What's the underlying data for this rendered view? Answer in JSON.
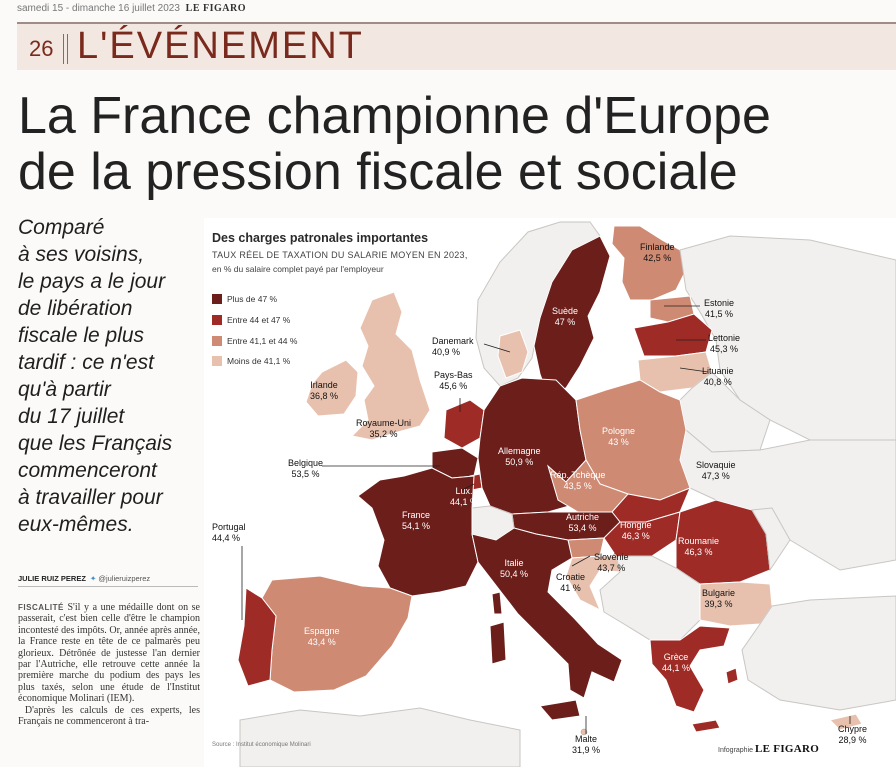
{
  "page": {
    "dateline": "samedi 15 - dimanche 16 juillet 2023",
    "brand": "LE FIGARO",
    "page_number": "26",
    "section": "L'ÉVÉNEMENT"
  },
  "article": {
    "headline_line1": "La France championne d'Europe",
    "headline_line2": "de la pression fiscale et sociale",
    "standfirst": [
      "Comparé",
      "à ses voisins,",
      "le pays a le jour",
      "de libération",
      "fiscale le plus",
      "tardif : ce n'est",
      "qu'à partir",
      "du 17 juillet",
      "que les Français",
      "commenceront",
      "à travailler pour",
      "eux-mêmes."
    ],
    "author": "JULIE RUIZ PEREZ",
    "author_twitter": "@julieruizperez",
    "body_kicker": "FISCALITÉ",
    "body_text": "S'il y a une médaille dont on se passerait, c'est bien celle d'être le champion incontesté des impôts. Or, année après année, la France reste en tête de ce palmarès peu glorieux. Détrônée de justesse l'an dernier par l'Autriche, elle retrouve cette année la première marche du podium des pays les plus taxés, selon une étude de l'Institut économique Molinari (IEM).",
    "body_text2": "D'après les calculs de ces experts, les Français ne commenceront à tra-"
  },
  "infographic": {
    "title": "Des charges patronales importantes",
    "subtitle": "TAUX RÉEL DE TAXATION DU SALARIE MOYEN EN 2023,",
    "unit_note": "en % du salaire complet payé par l'employeur",
    "legend": [
      {
        "label": "Plus de 47 %",
        "color": "#6b1e1a"
      },
      {
        "label": "Entre 44 et 47 %",
        "color": "#9e2b26"
      },
      {
        "label": "Entre 41,1 et 44 %",
        "color": "#cf8a73"
      },
      {
        "label": "Moins de 41,1 %",
        "color": "#e8c1ae"
      }
    ],
    "countries": [
      {
        "name": "Finlande",
        "value": "42,5 %"
      },
      {
        "name": "Suède",
        "value": "47 %"
      },
      {
        "name": "Estonie",
        "value": "41,5 %"
      },
      {
        "name": "Lettonie",
        "value": "45,3 %"
      },
      {
        "name": "Lituanie",
        "value": "40,8 %"
      },
      {
        "name": "Danemark",
        "value": "40,9 %"
      },
      {
        "name": "Pays-Bas",
        "value": "45,6 %"
      },
      {
        "name": "Irlande",
        "value": "36,8 %"
      },
      {
        "name": "Royaume-Uni",
        "value": "35,2 %"
      },
      {
        "name": "Allemagne",
        "value": "50,9 %"
      },
      {
        "name": "Pologne",
        "value": "43 %"
      },
      {
        "name": "Belgique",
        "value": "53,5 %"
      },
      {
        "name": "Rép. Tchèque",
        "value": "43,5 %"
      },
      {
        "name": "Slovaquie",
        "value": "47,3 %"
      },
      {
        "name": "Lux.",
        "value": "44,1 %"
      },
      {
        "name": "France",
        "value": "54,1 %"
      },
      {
        "name": "Autriche",
        "value": "53,4 %"
      },
      {
        "name": "Hongrie",
        "value": "46,3 %"
      },
      {
        "name": "Roumanie",
        "value": "46,3 %"
      },
      {
        "name": "Portugal",
        "value": "44,4 %"
      },
      {
        "name": "Slovénie",
        "value": "43,7 %"
      },
      {
        "name": "Croatie",
        "value": "41 %"
      },
      {
        "name": "Italie",
        "value": "50,4 %"
      },
      {
        "name": "Bulgarie",
        "value": "39,3 %"
      },
      {
        "name": "Espagne",
        "value": "43,4 %"
      },
      {
        "name": "Grèce",
        "value": "44,1 %"
      },
      {
        "name": "Malte",
        "value": "31,9 %"
      },
      {
        "name": "Chypre",
        "value": "28,9 %"
      }
    ],
    "source": "Source : Institut économique Molinari",
    "credit_prefix": "Infographie",
    "credit_brand": "LE FIGARO"
  }
}
